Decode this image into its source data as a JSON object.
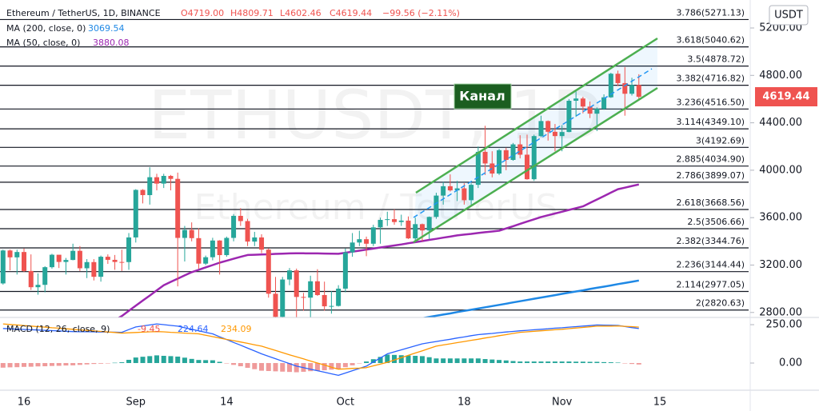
{
  "chart_data": {
    "type": "candlestick",
    "title": "Ethereum / TetherUS, 1D, BINANCE",
    "legend_values": [
      "O4719.00",
      "H4809.71",
      "L4602.46",
      "C4619.44",
      "−99.56 (−2.11%)"
    ],
    "watermark": "ETHUSDT, 1D",
    "watermark_sub": "Ethereum / TetherUS",
    "currency": "USDT",
    "annotation": "Канал",
    "up_color": "#26a69a",
    "down_color": "#ef5350",
    "categories": [
      null,
      null,
      null,
      "16",
      null,
      null,
      null,
      null,
      null,
      null,
      null,
      null,
      null,
      null,
      null,
      null,
      null,
      null,
      null,
      "Sep",
      null,
      null,
      null,
      null,
      null,
      null,
      null,
      null,
      null,
      null,
      null,
      null,
      "14",
      null,
      null,
      null,
      null,
      null,
      null,
      null,
      null,
      null,
      null,
      null,
      null,
      null,
      null,
      null,
      null,
      "Oct",
      null,
      null,
      null,
      null,
      null,
      null,
      null,
      null,
      null,
      null,
      null,
      null,
      null,
      null,
      null,
      null,
      "18",
      null,
      null,
      null,
      null,
      null,
      null,
      null,
      null,
      null,
      null,
      null,
      null,
      null,
      "Nov",
      null,
      null,
      null,
      null,
      null,
      null,
      null,
      null,
      null,
      null,
      null,
      null,
      null,
      "15"
    ],
    "open": [
      3045,
      3323,
      3265,
      3310,
      3150,
      3013,
      3033,
      3182,
      3287,
      3226,
      3243,
      3320,
      3173,
      3225,
      3101,
      3270,
      3244,
      3226,
      3225,
      3433,
      3834,
      3790,
      3941,
      3887,
      3952,
      3927,
      3429,
      3496,
      3427,
      3212,
      3266,
      3407,
      3284,
      3429,
      3615,
      3571,
      3398,
      3433,
      3330,
      2958,
      2763,
      3078,
      3155,
      2931,
      2925,
      3063,
      2947,
      2852,
      2855,
      3001,
      3307,
      3390,
      3418,
      3380,
      3518,
      3581,
      3587,
      3563,
      3575,
      3425,
      3545,
      3492,
      3606,
      3786,
      3865,
      3830,
      3847,
      3747,
      3877,
      4155,
      4057,
      3972,
      4169,
      4087,
      4218,
      4131,
      3924,
      4288,
      4415,
      4324,
      4288,
      4322,
      4586,
      4605,
      4537,
      4477,
      4518,
      4615,
      4814,
      4735,
      4645,
      4719,
      null,
      null,
      null
    ],
    "high": [
      3330,
      3330,
      3330,
      3340,
      3290,
      3130,
      3190,
      3295,
      3280,
      3260,
      3380,
      3360,
      3250,
      3250,
      3280,
      3290,
      3285,
      3330,
      3470,
      3840,
      3840,
      4025,
      3970,
      3970,
      3960,
      3980,
      3530,
      3560,
      3510,
      3280,
      3430,
      3410,
      3440,
      3630,
      3680,
      3590,
      3480,
      3460,
      3340,
      3100,
      3100,
      3175,
      3170,
      2965,
      3110,
      3165,
      3060,
      2980,
      3030,
      3340,
      3470,
      3490,
      3440,
      3540,
      3600,
      3650,
      3670,
      3625,
      3610,
      3600,
      3550,
      3610,
      3810,
      3900,
      3965,
      3910,
      3890,
      3890,
      4200,
      4375,
      4160,
      4180,
      4190,
      4230,
      4295,
      4300,
      4300,
      4460,
      4420,
      4390,
      4380,
      4600,
      4665,
      4620,
      4580,
      4530,
      4640,
      4822,
      4840,
      4870,
      4780,
      4809.71,
      null,
      null,
      null
    ],
    "low": [
      3035,
      3155,
      3120,
      3140,
      2990,
      2950,
      2970,
      3170,
      3175,
      3120,
      3240,
      3150,
      3090,
      3070,
      3060,
      3210,
      3160,
      3150,
      3160,
      3390,
      3720,
      3710,
      3830,
      3850,
      3830,
      3020,
      3230,
      3400,
      3170,
      3200,
      3240,
      3120,
      3270,
      3400,
      3530,
      3360,
      3360,
      3300,
      2925,
      2740,
      2750,
      3030,
      2740,
      2815,
      2740,
      2940,
      2815,
      2790,
      2850,
      2970,
      3270,
      3360,
      3275,
      3360,
      3380,
      3530,
      3540,
      3530,
      3420,
      3400,
      3400,
      3420,
      3590,
      3710,
      3820,
      3740,
      3710,
      3710,
      3850,
      3960,
      3940,
      3960,
      4000,
      4080,
      4100,
      3920,
      3910,
      4280,
      4250,
      4160,
      4160,
      4320,
      4450,
      4480,
      4440,
      4330,
      4510,
      4610,
      4710,
      4460,
      4630,
      4602.46,
      null,
      null,
      null
    ],
    "close": [
      3323,
      3265,
      3310,
      3150,
      3013,
      3033,
      3182,
      3287,
      3226,
      3243,
      3320,
      3173,
      3225,
      3101,
      3270,
      3244,
      3226,
      3225,
      3433,
      3834,
      3790,
      3941,
      3887,
      3952,
      3927,
      3429,
      3496,
      3427,
      3212,
      3266,
      3407,
      3284,
      3429,
      3615,
      3571,
      3398,
      3433,
      3330,
      2958,
      2763,
      3078,
      3155,
      2931,
      2925,
      3063,
      2947,
      2852,
      2855,
      3001,
      3307,
      3390,
      3418,
      3380,
      3518,
      3581,
      3587,
      3563,
      3575,
      3425,
      3545,
      3492,
      3606,
      3786,
      3865,
      3830,
      3847,
      3747,
      3877,
      4155,
      4057,
      3972,
      4169,
      4087,
      4218,
      4131,
      3924,
      4288,
      4415,
      4324,
      4288,
      4322,
      4586,
      4605,
      4537,
      4477,
      4518,
      4615,
      4814,
      4735,
      4645,
      4719,
      4619.44,
      null,
      null,
      null
    ],
    "series": [
      {
        "name": "MA (200, close, 0)",
        "color": "#1e88e5",
        "values": [
          null,
          null,
          null,
          null,
          null,
          null,
          null,
          null,
          null,
          null,
          null,
          null,
          null,
          null,
          null,
          null,
          null,
          null,
          null,
          null,
          null,
          null,
          null,
          null,
          null,
          null,
          null,
          null,
          null,
          null,
          null,
          null,
          null,
          null,
          null,
          null,
          null,
          null,
          null,
          null,
          null,
          null,
          null,
          null,
          null,
          null,
          null,
          null,
          null,
          null,
          null,
          null,
          null,
          null,
          null,
          2700,
          2710,
          2721,
          2731,
          2741,
          2751,
          2762,
          2772,
          2782,
          2792,
          2803,
          2813,
          2823,
          2833,
          2844,
          2854,
          2864,
          2874,
          2885,
          2895,
          2905,
          2916,
          2926,
          2936,
          2946,
          2957,
          2967,
          2977,
          2987,
          2998,
          3008,
          3018,
          3028,
          3039,
          3049,
          3059,
          3069.54,
          null,
          null,
          null
        ]
      },
      {
        "name": "MA (50, close, 0)",
        "color": "#9c27b0",
        "values": [
          null,
          null,
          null,
          null,
          null,
          null,
          null,
          null,
          null,
          null,
          null,
          null,
          null,
          null,
          null,
          2700,
          2735,
          2770,
          2813,
          2857,
          2900,
          2943,
          2987,
          3030,
          3058,
          3085,
          3113,
          3140,
          3160,
          3180,
          3200,
          3220,
          3236,
          3253,
          3269,
          3285,
          3287,
          3289,
          3291,
          3294,
          3296,
          3298,
          3300,
          3299,
          3298,
          3298,
          3297,
          3296,
          3295,
          3304,
          3313,
          3321,
          3330,
          3339,
          3348,
          3356,
          3365,
          3374,
          3384,
          3393,
          3402,
          3412,
          3421,
          3431,
          3440,
          3450,
          3457,
          3463,
          3470,
          3477,
          3483,
          3490,
          3509,
          3528,
          3548,
          3567,
          3586,
          3605,
          3620,
          3635,
          3650,
          3665,
          3680,
          3695,
          3724,
          3753,
          3782,
          3811,
          3840,
          3853,
          3867,
          3880.08,
          null,
          null,
          null
        ]
      }
    ],
    "ylim": [
      2758,
      5436
    ],
    "yticks": [
      {
        "value": 5200,
        "label": "5200.00"
      },
      {
        "value": 4800,
        "label": "4800.00"
      },
      {
        "value": 4400,
        "label": "4400.00"
      },
      {
        "value": 4000,
        "label": "4000.00"
      },
      {
        "value": 3600,
        "label": "3600.00"
      },
      {
        "value": 3200,
        "label": "3200.00"
      },
      {
        "value": 2800,
        "label": "2800.00"
      }
    ],
    "fib_levels": [
      {
        "value": 5271.13,
        "label": "3.786(5271.13)"
      },
      {
        "value": 5040.62,
        "label": "3.618(5040.62)"
      },
      {
        "value": 4878.72,
        "label": "3.5(4878.72)"
      },
      {
        "value": 4716.82,
        "label": "3.382(4716.82)"
      },
      {
        "value": 4516.5,
        "label": "3.236(4516.50)"
      },
      {
        "value": 4349.1,
        "label": "3.114(4349.10)"
      },
      {
        "value": 4192.69,
        "label": "3(4192.69)"
      },
      {
        "value": 4034.9,
        "label": "2.885(4034.90)"
      },
      {
        "value": 3899.07,
        "label": "2.786(3899.07)"
      },
      {
        "value": 3668.56,
        "label": "2.618(3668.56)"
      },
      {
        "value": 3506.66,
        "label": "2.5(3506.66)"
      },
      {
        "value": 3344.76,
        "label": "2.382(3344.76)"
      },
      {
        "value": 3144.44,
        "label": "2.236(3144.44)"
      },
      {
        "value": 2977.05,
        "label": "2.114(2977.05)"
      },
      {
        "value": 2820.63,
        "label": "2(2820.63)"
      }
    ],
    "macd": {
      "name": "MACD (12, 26, close, 9)",
      "macd_color": "#2962ff",
      "signal_color": "#ff9800",
      "up_color": "#26a69a",
      "down_color": "#ef9a9a",
      "ylim": [
        -177,
        297
      ],
      "yticks": [
        {
          "value": 250,
          "label": "250.00"
        },
        {
          "value": 0,
          "label": "0.00"
        }
      ],
      "histogram": [
        -30,
        -28,
        -27,
        -25,
        -24,
        -22,
        -21,
        -19,
        -18,
        -16,
        -15,
        -12,
        -9,
        -6,
        -4,
        -1,
        2,
        5,
        21,
        36,
        41,
        45,
        50,
        47,
        45,
        42,
        35,
        27,
        20,
        19,
        18,
        8,
        -1,
        -12,
        -21,
        -31,
        -40,
        -50,
        -52,
        -54,
        -56,
        -58,
        -60,
        -57,
        -53,
        -50,
        -47,
        -43,
        -40,
        -27,
        -15,
        -2,
        10,
        25,
        40,
        55,
        53,
        51,
        49,
        47,
        45,
        38,
        30,
        30,
        30,
        30,
        30,
        30,
        30,
        26,
        23,
        20,
        17,
        13,
        10,
        10,
        10,
        10,
        10,
        10,
        10,
        10,
        9,
        9,
        8,
        8,
        6,
        5,
        3,
        -1,
        -6,
        -9.45,
        null,
        null,
        null
      ],
      "macd": [
        225,
        223,
        221,
        219,
        217,
        215,
        213,
        211,
        209,
        207,
        205,
        204,
        204,
        203,
        202,
        201,
        201,
        200,
        218,
        235,
        242,
        248,
        255,
        250,
        245,
        240,
        230,
        220,
        210,
        200,
        190,
        171,
        153,
        134,
        116,
        97,
        79,
        60,
        44,
        28,
        12,
        -4,
        -20,
        -30,
        -40,
        -50,
        -60,
        -70,
        -80,
        -65,
        -50,
        -35,
        -20,
        7,
        33,
        60,
        73,
        86,
        99,
        112,
        125,
        133,
        140,
        148,
        155,
        163,
        170,
        178,
        185,
        189,
        193,
        198,
        202,
        206,
        210,
        213,
        217,
        220,
        223,
        227,
        230,
        234,
        237,
        241,
        244,
        248,
        247,
        246,
        245,
        238,
        231,
        224.64,
        null,
        null,
        null
      ],
      "signal": [
        255,
        251,
        248,
        244,
        241,
        237,
        234,
        230,
        227,
        223,
        220,
        216,
        213,
        209,
        206,
        202,
        199,
        195,
        197,
        199,
        201,
        203,
        205,
        203,
        200,
        198,
        195,
        193,
        190,
        181,
        172,
        163,
        154,
        146,
        137,
        128,
        119,
        110,
        96,
        82,
        68,
        54,
        40,
        27,
        13,
        0,
        -13,
        -27,
        -40,
        -38,
        -35,
        -33,
        -30,
        -18,
        -7,
        5,
        20,
        35,
        50,
        65,
        80,
        95,
        110,
        118,
        125,
        133,
        140,
        148,
        155,
        163,
        170,
        178,
        185,
        193,
        200,
        203,
        207,
        210,
        213,
        217,
        220,
        224,
        228,
        232,
        236,
        240,
        241,
        241,
        242,
        239,
        237,
        234.09,
        null,
        null,
        null
      ]
    }
  }
}
